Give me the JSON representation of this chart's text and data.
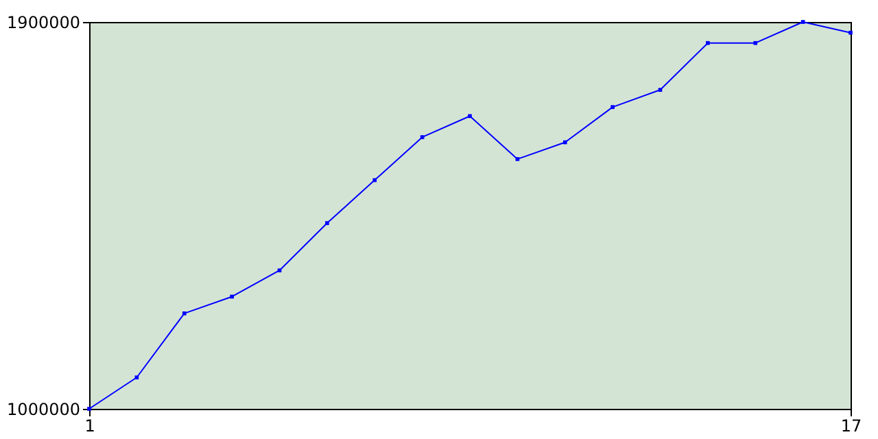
{
  "chart_data": {
    "type": "line",
    "x": [
      1,
      2,
      3,
      4,
      5,
      6,
      7,
      8,
      9,
      10,
      11,
      12,
      13,
      14,
      15,
      16,
      17
    ],
    "series": [
      {
        "color": "#0000ff",
        "values": [
          1000000,
          1073000,
          1222000,
          1261000,
          1322000,
          1432000,
          1532000,
          1632000,
          1681000,
          1581000,
          1620000,
          1702000,
          1742000,
          1851000,
          1851000,
          1900000,
          1875000
        ]
      }
    ],
    "xlim": [
      1,
      17
    ],
    "xticks": [
      1,
      17
    ],
    "ylim": [
      1000000,
      1900000
    ],
    "yticks": [
      1000000,
      1900000
    ],
    "grid": false,
    "legend": false,
    "marker": "square",
    "line_style": "solid"
  }
}
